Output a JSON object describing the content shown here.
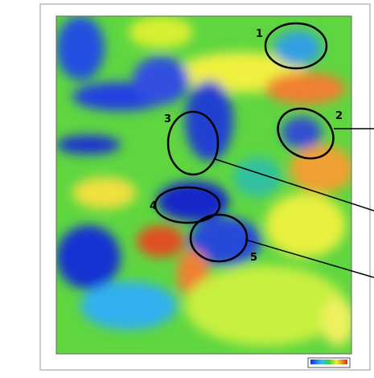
{
  "map": {
    "annotations": [
      "1",
      "2",
      "3",
      "4",
      "5"
    ]
  }
}
